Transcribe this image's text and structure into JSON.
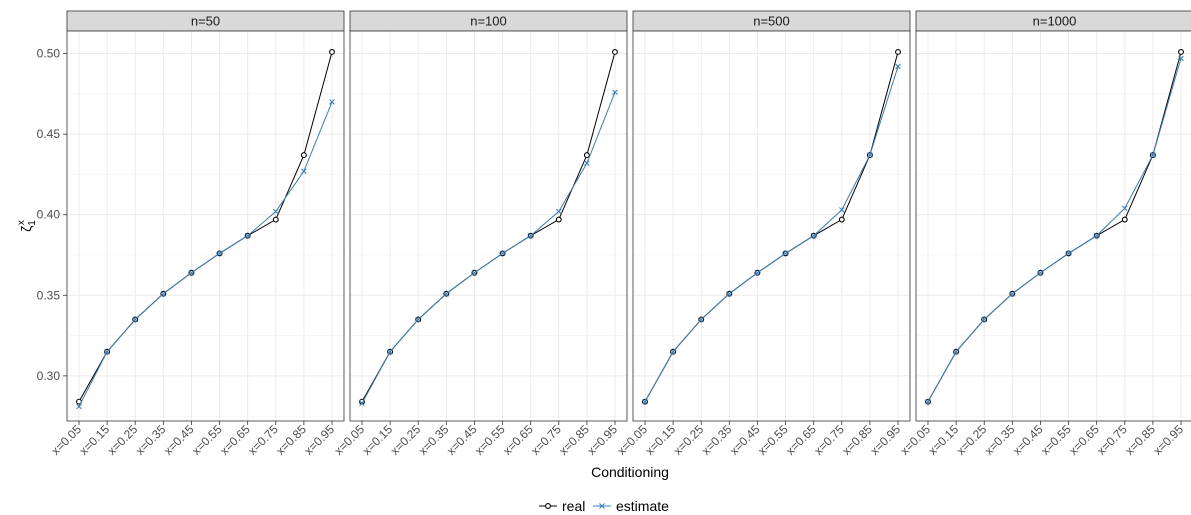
{
  "chart_data": {
    "type": "line",
    "xlabel": "Conditioning",
    "ylabel": "ζ",
    "ylabel_sub": "1",
    "ylabel_sup": "x",
    "ylim": [
      0.272,
      0.514
    ],
    "yticks": [
      0.3,
      0.35,
      0.4,
      0.45,
      0.5
    ],
    "ytick_labels": [
      "0.30",
      "0.35",
      "0.40",
      "0.45",
      "0.50"
    ],
    "categories": [
      "x=0.05",
      "x=0.15",
      "x=0.25",
      "x=0.35",
      "x=0.45",
      "x=0.55",
      "x=0.65",
      "x=0.75",
      "x=0.85",
      "x=0.95"
    ],
    "grid": true,
    "legend_position": "bottom",
    "colors": {
      "real": "#000000",
      "estimate": "#3a7fbf",
      "strip_bg": "#d9d9d9",
      "grid": "#ebebeb"
    },
    "panels": [
      {
        "title": "n=50",
        "series": [
          {
            "name": "real",
            "marker": "circle",
            "values": [
              0.284,
              0.315,
              0.335,
              0.351,
              0.364,
              0.376,
              0.387,
              0.397,
              0.437,
              0.501
            ]
          },
          {
            "name": "estimate",
            "marker": "x",
            "values": [
              0.281,
              0.315,
              0.335,
              0.351,
              0.364,
              0.376,
              0.387,
              0.402,
              0.427,
              0.47
            ]
          }
        ]
      },
      {
        "title": "n=100",
        "series": [
          {
            "name": "real",
            "marker": "circle",
            "values": [
              0.284,
              0.315,
              0.335,
              0.351,
              0.364,
              0.376,
              0.387,
              0.397,
              0.437,
              0.501
            ]
          },
          {
            "name": "estimate",
            "marker": "x",
            "values": [
              0.283,
              0.315,
              0.335,
              0.351,
              0.364,
              0.376,
              0.387,
              0.402,
              0.432,
              0.476
            ]
          }
        ]
      },
      {
        "title": "n=500",
        "series": [
          {
            "name": "real",
            "marker": "circle",
            "values": [
              0.284,
              0.315,
              0.335,
              0.351,
              0.364,
              0.376,
              0.387,
              0.397,
              0.437,
              0.501
            ]
          },
          {
            "name": "estimate",
            "marker": "x",
            "values": [
              0.284,
              0.315,
              0.335,
              0.351,
              0.364,
              0.376,
              0.387,
              0.403,
              0.437,
              0.492
            ]
          }
        ]
      },
      {
        "title": "n=1000",
        "series": [
          {
            "name": "real",
            "marker": "circle",
            "values": [
              0.284,
              0.315,
              0.335,
              0.351,
              0.364,
              0.376,
              0.387,
              0.397,
              0.437,
              0.501
            ]
          },
          {
            "name": "estimate",
            "marker": "x",
            "values": [
              0.284,
              0.315,
              0.335,
              0.351,
              0.364,
              0.376,
              0.387,
              0.404,
              0.437,
              0.497
            ]
          }
        ]
      }
    ],
    "legend": [
      {
        "name": "real",
        "marker": "circle"
      },
      {
        "name": "estimate",
        "marker": "x"
      }
    ]
  }
}
